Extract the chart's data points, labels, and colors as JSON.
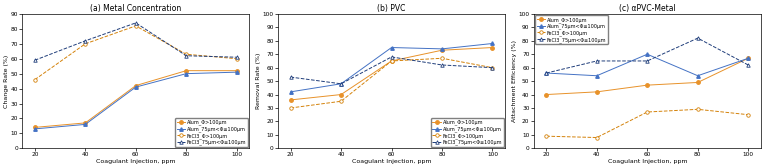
{
  "x": [
    20,
    40,
    60,
    80,
    100
  ],
  "panel_a_title": "(a) Metal Concentration",
  "panel_a_ylabel": "Change Rate (%)",
  "panel_a_ylim": [
    0,
    90
  ],
  "panel_a_yticks": [
    0,
    10,
    20,
    30,
    40,
    50,
    60,
    70,
    80,
    90
  ],
  "a_alum_large": [
    14,
    17,
    42,
    52,
    52
  ],
  "a_alum_small": [
    13,
    16,
    41,
    50,
    51
  ],
  "a_fecl3_large": [
    46,
    70,
    82,
    63,
    60
  ],
  "a_fecl3_small": [
    59,
    72,
    84,
    62,
    61
  ],
  "panel_b_title": "(b) PVC",
  "panel_b_ylabel": "Removal Rate (%)",
  "panel_b_ylim": [
    0,
    100
  ],
  "panel_b_yticks": [
    0,
    10,
    20,
    30,
    40,
    50,
    60,
    70,
    80,
    90,
    100
  ],
  "b_alum_large": [
    36,
    40,
    65,
    73,
    75
  ],
  "b_alum_small": [
    42,
    48,
    75,
    74,
    78
  ],
  "b_fecl3_large": [
    30,
    35,
    65,
    67,
    60
  ],
  "b_fecl3_small": [
    53,
    48,
    68,
    62,
    60
  ],
  "panel_c_title": "(c) αPVC-Metal",
  "panel_c_ylabel": "Attachment Efficiency (%)",
  "panel_c_ylim": [
    0,
    100
  ],
  "panel_c_yticks": [
    0,
    10,
    20,
    30,
    40,
    50,
    60,
    70,
    80,
    90,
    100
  ],
  "c_alum_large": [
    40,
    42,
    47,
    49,
    67
  ],
  "c_alum_small": [
    56,
    54,
    70,
    54,
    67
  ],
  "c_fecl3_large": [
    9,
    8,
    27,
    29,
    25
  ],
  "c_fecl3_small": [
    56,
    65,
    65,
    82,
    62
  ],
  "xlabel": "Coagulant Injection, ppm",
  "col_al": "#e8922a",
  "col_as": "#4472c4",
  "col_fl": "#d4820a",
  "col_fs": "#1f3d7a",
  "legend_labels": [
    "Alum_Φ>100μm",
    "Alum_75μm<Φ≤100μm",
    "FeCl3_Φ>100μm",
    "FeCl3_75μm<Φ≤100μm"
  ],
  "title_fontsize": 5.5,
  "label_fontsize": 4.5,
  "tick_fontsize": 4.2,
  "legend_fontsize": 3.5,
  "ms": 2.5,
  "lw": 0.7
}
